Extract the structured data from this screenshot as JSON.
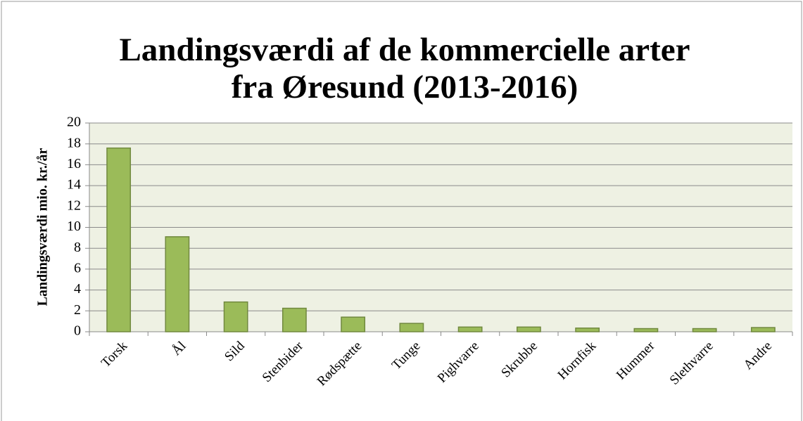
{
  "chart_data": {
    "type": "bar",
    "title": [
      "Landingsværdi af de kommercielle arter",
      "fra Øresund (2013-2016)"
    ],
    "y_label": "Landingsværdi mio. kr./år",
    "categories": [
      "Torsk",
      "Ål",
      "Sild",
      "Stenbider",
      "Rødspætte",
      "Tunge",
      "Pighvarre",
      "Skrubbe",
      "Hornfisk",
      "Hummer",
      "Slethvarre",
      "Andre"
    ],
    "values": [
      17.6,
      9.1,
      2.85,
      2.25,
      1.4,
      0.8,
      0.45,
      0.45,
      0.35,
      0.3,
      0.3,
      0.4
    ],
    "color": "#9bbb59",
    "ylim": [
      0,
      20
    ],
    "yticks": [
      0,
      2,
      4,
      6,
      8,
      10,
      12,
      14,
      16,
      18,
      20
    ],
    "grid": true
  }
}
